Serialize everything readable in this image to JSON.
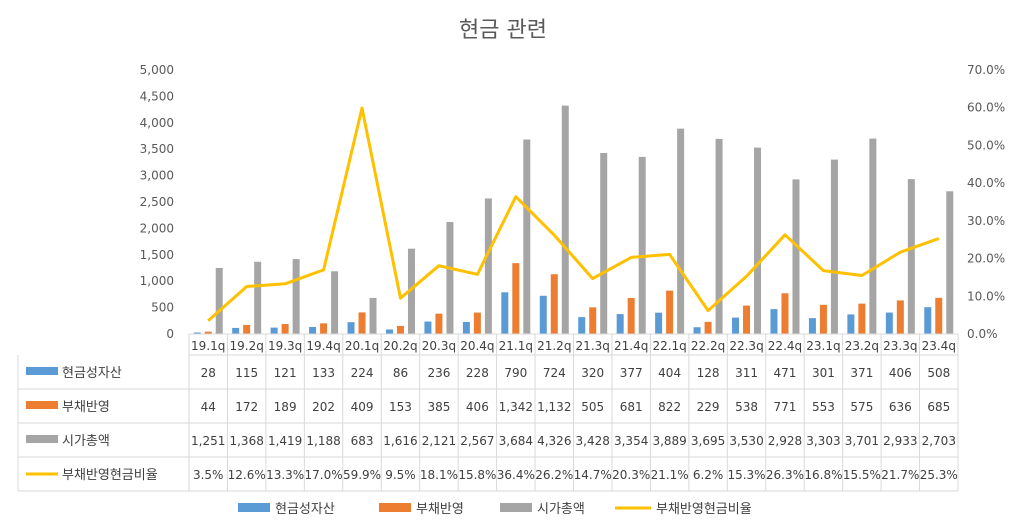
{
  "chart_data": {
    "type": "bar",
    "title": "현금 관련",
    "categories": [
      "19.1q",
      "19.2q",
      "19.3q",
      "19.4q",
      "20.1q",
      "20.2q",
      "20.3q",
      "20.4q",
      "21.1q",
      "21.2q",
      "21.3q",
      "21.4q",
      "22.1q",
      "22.2q",
      "22.3q",
      "22.4q",
      "23.1q",
      "23.2q",
      "23.3q",
      "23.4q"
    ],
    "series": [
      {
        "name": "현금성자산",
        "kind": "bar",
        "axis": "left",
        "color": "#5B9BD5",
        "values": [
          28,
          115,
          121,
          133,
          224,
          86,
          236,
          228,
          790,
          724,
          320,
          377,
          404,
          128,
          311,
          471,
          301,
          371,
          406,
          508
        ],
        "labels": [
          "28",
          "115",
          "121",
          "133",
          "224",
          "86",
          "236",
          "228",
          "790",
          "724",
          "320",
          "377",
          "404",
          "128",
          "311",
          "471",
          "301",
          "371",
          "406",
          "508"
        ]
      },
      {
        "name": "부채반영",
        "kind": "bar",
        "axis": "left",
        "color": "#ED7D31",
        "values": [
          44,
          172,
          189,
          202,
          409,
          153,
          385,
          406,
          1342,
          1132,
          505,
          681,
          822,
          229,
          538,
          771,
          553,
          575,
          636,
          685
        ],
        "labels": [
          "44",
          "172",
          "189",
          "202",
          "409",
          "153",
          "385",
          "406",
          "1,342",
          "1,132",
          "505",
          "681",
          "822",
          "229",
          "538",
          "771",
          "553",
          "575",
          "636",
          "685"
        ]
      },
      {
        "name": "시가총액",
        "kind": "bar",
        "axis": "left",
        "color": "#A5A5A5",
        "values": [
          1251,
          1368,
          1419,
          1188,
          683,
          1616,
          2121,
          2567,
          3684,
          4326,
          3428,
          3354,
          3889,
          3695,
          3530,
          2928,
          3303,
          3701,
          2933,
          2703
        ],
        "labels": [
          "1,251",
          "1,368",
          "1,419",
          "1,188",
          "683",
          "1,616",
          "2,121",
          "2,567",
          "3,684",
          "4,326",
          "3,428",
          "3,354",
          "3,889",
          "3,695",
          "3,530",
          "2,928",
          "3,303",
          "3,701",
          "2,933",
          "2,703"
        ]
      },
      {
        "name": "부채반영현금비율",
        "kind": "line",
        "axis": "right",
        "color": "#FFC000",
        "values": [
          3.5,
          12.6,
          13.3,
          17.0,
          59.9,
          9.5,
          18.1,
          15.8,
          36.4,
          26.2,
          14.7,
          20.3,
          21.1,
          6.2,
          15.3,
          26.3,
          16.8,
          15.5,
          21.7,
          25.3
        ],
        "labels": [
          "3.5%",
          "12.6%",
          "13.3%",
          "17.0%",
          "59.9%",
          "9.5%",
          "18.1%",
          "15.8%",
          "36.4%",
          "26.2%",
          "14.7%",
          "20.3%",
          "21.1%",
          "6.2%",
          "15.3%",
          "26.3%",
          "16.8%",
          "15.5%",
          "21.7%",
          "25.3%"
        ]
      }
    ],
    "y_left": {
      "range": [
        0,
        5000
      ],
      "ticks": [
        "0",
        "500",
        "1,000",
        "1,500",
        "2,000",
        "2,500",
        "3,000",
        "3,500",
        "4,000",
        "4,500",
        "5,000"
      ]
    },
    "y_right": {
      "range": [
        0,
        70
      ],
      "ticks": [
        "0.0%",
        "10.0%",
        "20.0%",
        "30.0%",
        "40.0%",
        "50.0%",
        "60.0%",
        "70.0%"
      ]
    },
    "grid": false,
    "data_table": true,
    "legend": "bottom"
  }
}
